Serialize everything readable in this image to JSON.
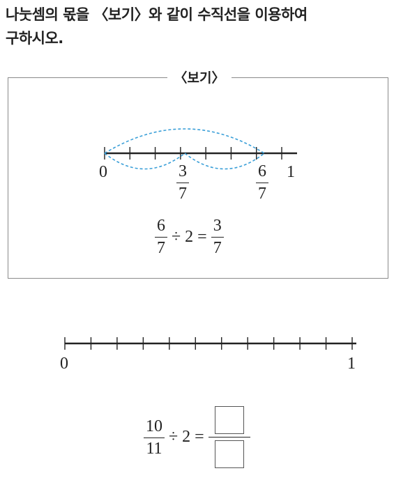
{
  "question": {
    "text_line1": "나눗셈의 몫을 〈보기〉와 같이 수직선을 이용하여",
    "text_line2": "구하시오."
  },
  "example": {
    "title": "〈보기〉",
    "number_line": {
      "divisions": 7,
      "start_label": "0",
      "end_label": "1",
      "marked_points": [
        {
          "numerator": "3",
          "denominator": "7"
        },
        {
          "numerator": "6",
          "denominator": "7"
        }
      ]
    },
    "equation": {
      "dividend_num": "6",
      "dividend_den": "7",
      "divide": "÷",
      "divisor": "2",
      "equals": "=",
      "result_num": "3",
      "result_den": "7"
    }
  },
  "problem": {
    "number_line": {
      "divisions": 11,
      "start_label": "0",
      "end_label": "1"
    },
    "equation": {
      "dividend_num": "10",
      "dividend_den": "11",
      "divide": "÷",
      "divisor": "2",
      "equals": "="
    }
  }
}
